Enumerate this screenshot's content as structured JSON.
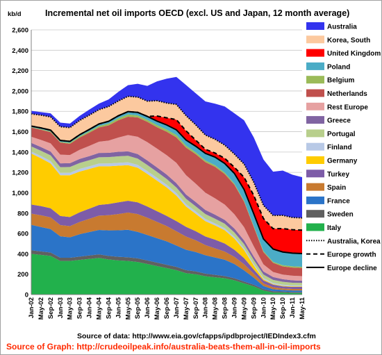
{
  "chart_data": {
    "type": "area",
    "title": "Incremental net oil imports OECD (excl. US and Japan, 12 month average)",
    "ylabel": "kb/d",
    "ylim": [
      0,
      2600
    ],
    "yticks": [
      0,
      200,
      400,
      600,
      800,
      1000,
      1200,
      1400,
      1600,
      1800,
      2000,
      2200,
      2400,
      2600
    ],
    "xticks": [
      "Jan-02",
      "May-02",
      "Sep-02",
      "Jan-03",
      "May-03",
      "Sep-03",
      "Jan-04",
      "May-04",
      "Sep-04",
      "Jan-05",
      "May-05",
      "Sep-05",
      "Jan-06",
      "May-06",
      "Sep-06",
      "Jan-07",
      "May-07",
      "Sep-07",
      "Jan-08",
      "May-08",
      "Sep-08",
      "Jan-09",
      "May-09",
      "Sep-09",
      "Jan-10",
      "May-10",
      "Sep-10",
      "Jan-11",
      "May-11"
    ],
    "grid": true,
    "legend_placement": "right",
    "stack_order": [
      "Italy",
      "Sweden",
      "France",
      "Spain",
      "Turkey",
      "Germany",
      "Finland",
      "Portugal",
      "Greece",
      "Rest Europe",
      "Netherlands",
      "Belgium",
      "Poland",
      "United Kingdom",
      "Korea, South",
      "Australia"
    ],
    "series": [
      {
        "name": "Australia",
        "color": "#3333ee",
        "values": [
          30,
          30,
          35,
          40,
          40,
          45,
          55,
          60,
          70,
          90,
          110,
          130,
          150,
          190,
          240,
          270,
          300,
          310,
          330,
          350,
          380,
          400,
          430,
          440,
          450,
          430,
          440,
          420,
          400
        ]
      },
      {
        "name": "Korea, South",
        "color": "#fcc99f",
        "values": [
          120,
          125,
          130,
          135,
          135,
          140,
          140,
          140,
          145,
          145,
          150,
          150,
          150,
          150,
          145,
          150,
          150,
          150,
          140,
          135,
          130,
          130,
          130,
          130,
          130,
          130,
          130,
          120,
          120
        ]
      },
      {
        "name": "United Kingdom",
        "color": "#ff0000",
        "values": [
          0,
          0,
          0,
          0,
          0,
          0,
          0,
          0,
          0,
          0,
          0,
          0,
          0,
          50,
          70,
          100,
          90,
          60,
          40,
          40,
          50,
          60,
          120,
          180,
          200,
          200,
          230,
          230,
          230
        ]
      },
      {
        "name": "Poland",
        "color": "#4bacc6",
        "values": [
          10,
          12,
          12,
          14,
          14,
          16,
          18,
          20,
          22,
          24,
          28,
          30,
          35,
          40,
          45,
          50,
          55,
          60,
          70,
          80,
          90,
          100,
          110,
          120,
          120,
          125,
          130,
          130,
          130
        ]
      },
      {
        "name": "Belgium",
        "color": "#9bbb59",
        "values": [
          5,
          6,
          8,
          6,
          10,
          12,
          14,
          15,
          18,
          20,
          22,
          20,
          18,
          20,
          22,
          24,
          20,
          18,
          16,
          15,
          14,
          12,
          10,
          10,
          10,
          10,
          12,
          12,
          12
        ]
      },
      {
        "name": "Netherlands",
        "color": "#c0504d",
        "values": [
          90,
          100,
          110,
          120,
          110,
          120,
          130,
          140,
          150,
          170,
          180,
          190,
          200,
          210,
          230,
          250,
          270,
          290,
          300,
          310,
          300,
          290,
          250,
          190,
          120,
          90,
          80,
          80,
          80
        ]
      },
      {
        "name": "Rest Europe",
        "color": "#e6a1a1",
        "values": [
          60,
          70,
          80,
          85,
          80,
          90,
          100,
          110,
          120,
          140,
          160,
          170,
          180,
          185,
          190,
          200,
          190,
          180,
          170,
          160,
          150,
          140,
          130,
          100,
          70,
          50,
          45,
          45,
          45
        ]
      },
      {
        "name": "Greece",
        "color": "#8064a2",
        "values": [
          35,
          36,
          38,
          38,
          38,
          40,
          40,
          42,
          42,
          44,
          44,
          44,
          44,
          44,
          44,
          42,
          42,
          42,
          40,
          40,
          38,
          38,
          36,
          34,
          30,
          28,
          26,
          24,
          22
        ]
      },
      {
        "name": "Portugal",
        "color": "#b8cf8c",
        "values": [
          50,
          52,
          55,
          55,
          56,
          58,
          60,
          62,
          62,
          64,
          64,
          62,
          60,
          58,
          56,
          54,
          52,
          50,
          48,
          46,
          44,
          42,
          40,
          38,
          34,
          30,
          28,
          26,
          24
        ]
      },
      {
        "name": "Finland",
        "color": "#b8c9e6",
        "values": [
          20,
          22,
          24,
          24,
          25,
          26,
          26,
          27,
          28,
          28,
          28,
          28,
          28,
          28,
          26,
          26,
          24,
          24,
          22,
          20,
          20,
          18,
          18,
          16,
          14,
          12,
          12,
          10,
          10
        ]
      },
      {
        "name": "Germany",
        "color": "#ffcc00",
        "values": [
          500,
          470,
          440,
          400,
          410,
          400,
          390,
          380,
          370,
          360,
          350,
          340,
          320,
          300,
          280,
          250,
          200,
          170,
          150,
          140,
          130,
          110,
          80,
          40,
          10,
          5,
          5,
          5,
          5
        ]
      },
      {
        "name": "Turkey",
        "color": "#7d5ca8",
        "values": [
          90,
          90,
          90,
          90,
          90,
          95,
          100,
          105,
          110,
          115,
          115,
          115,
          110,
          105,
          100,
          100,
          95,
          90,
          85,
          85,
          80,
          70,
          60,
          40,
          30,
          25,
          20,
          20,
          20
        ]
      },
      {
        "name": "Spain",
        "color": "#c87a30",
        "values": [
          110,
          115,
          115,
          110,
          110,
          120,
          130,
          140,
          150,
          160,
          170,
          175,
          170,
          160,
          150,
          140,
          130,
          115,
          100,
          90,
          80,
          70,
          60,
          40,
          25,
          20,
          15,
          15,
          15
        ]
      },
      {
        "name": "France",
        "color": "#2b74c8",
        "values": [
          250,
          240,
          230,
          210,
          200,
          220,
          230,
          240,
          250,
          260,
          270,
          260,
          250,
          240,
          230,
          210,
          200,
          190,
          180,
          170,
          160,
          140,
          110,
          70,
          30,
          20,
          15,
          15,
          15
        ]
      },
      {
        "name": "Sweden",
        "color": "#606060",
        "values": [
          35,
          34,
          33,
          32,
          32,
          33,
          34,
          35,
          35,
          36,
          36,
          36,
          35,
          34,
          33,
          32,
          30,
          28,
          26,
          24,
          22,
          20,
          18,
          16,
          14,
          12,
          10,
          10,
          10
        ]
      },
      {
        "name": "Italy",
        "color": "#22b14c",
        "values": [
          400,
          390,
          380,
          330,
          330,
          340,
          350,
          360,
          345,
          335,
          330,
          320,
          300,
          280,
          260,
          240,
          210,
          200,
          180,
          170,
          160,
          140,
          110,
          80,
          40,
          20,
          20,
          15,
          15
        ]
      }
    ],
    "lines": [
      {
        "name": "Australia, Korea",
        "style": "dotted",
        "color": "#000000"
      },
      {
        "name": "Europe growth",
        "style": "dashed",
        "color": "#000000"
      },
      {
        "name": "Europe decline",
        "style": "solid",
        "color": "#000000"
      }
    ]
  },
  "source_text": "Source of data: http://www.eia.gov/cfapps/ipdbproject/IEDIndex3.cfm",
  "graph_source_text": "Source of Graph: http://crudeoilpeak.info/australia-beats-them-all-in-oil-imports"
}
